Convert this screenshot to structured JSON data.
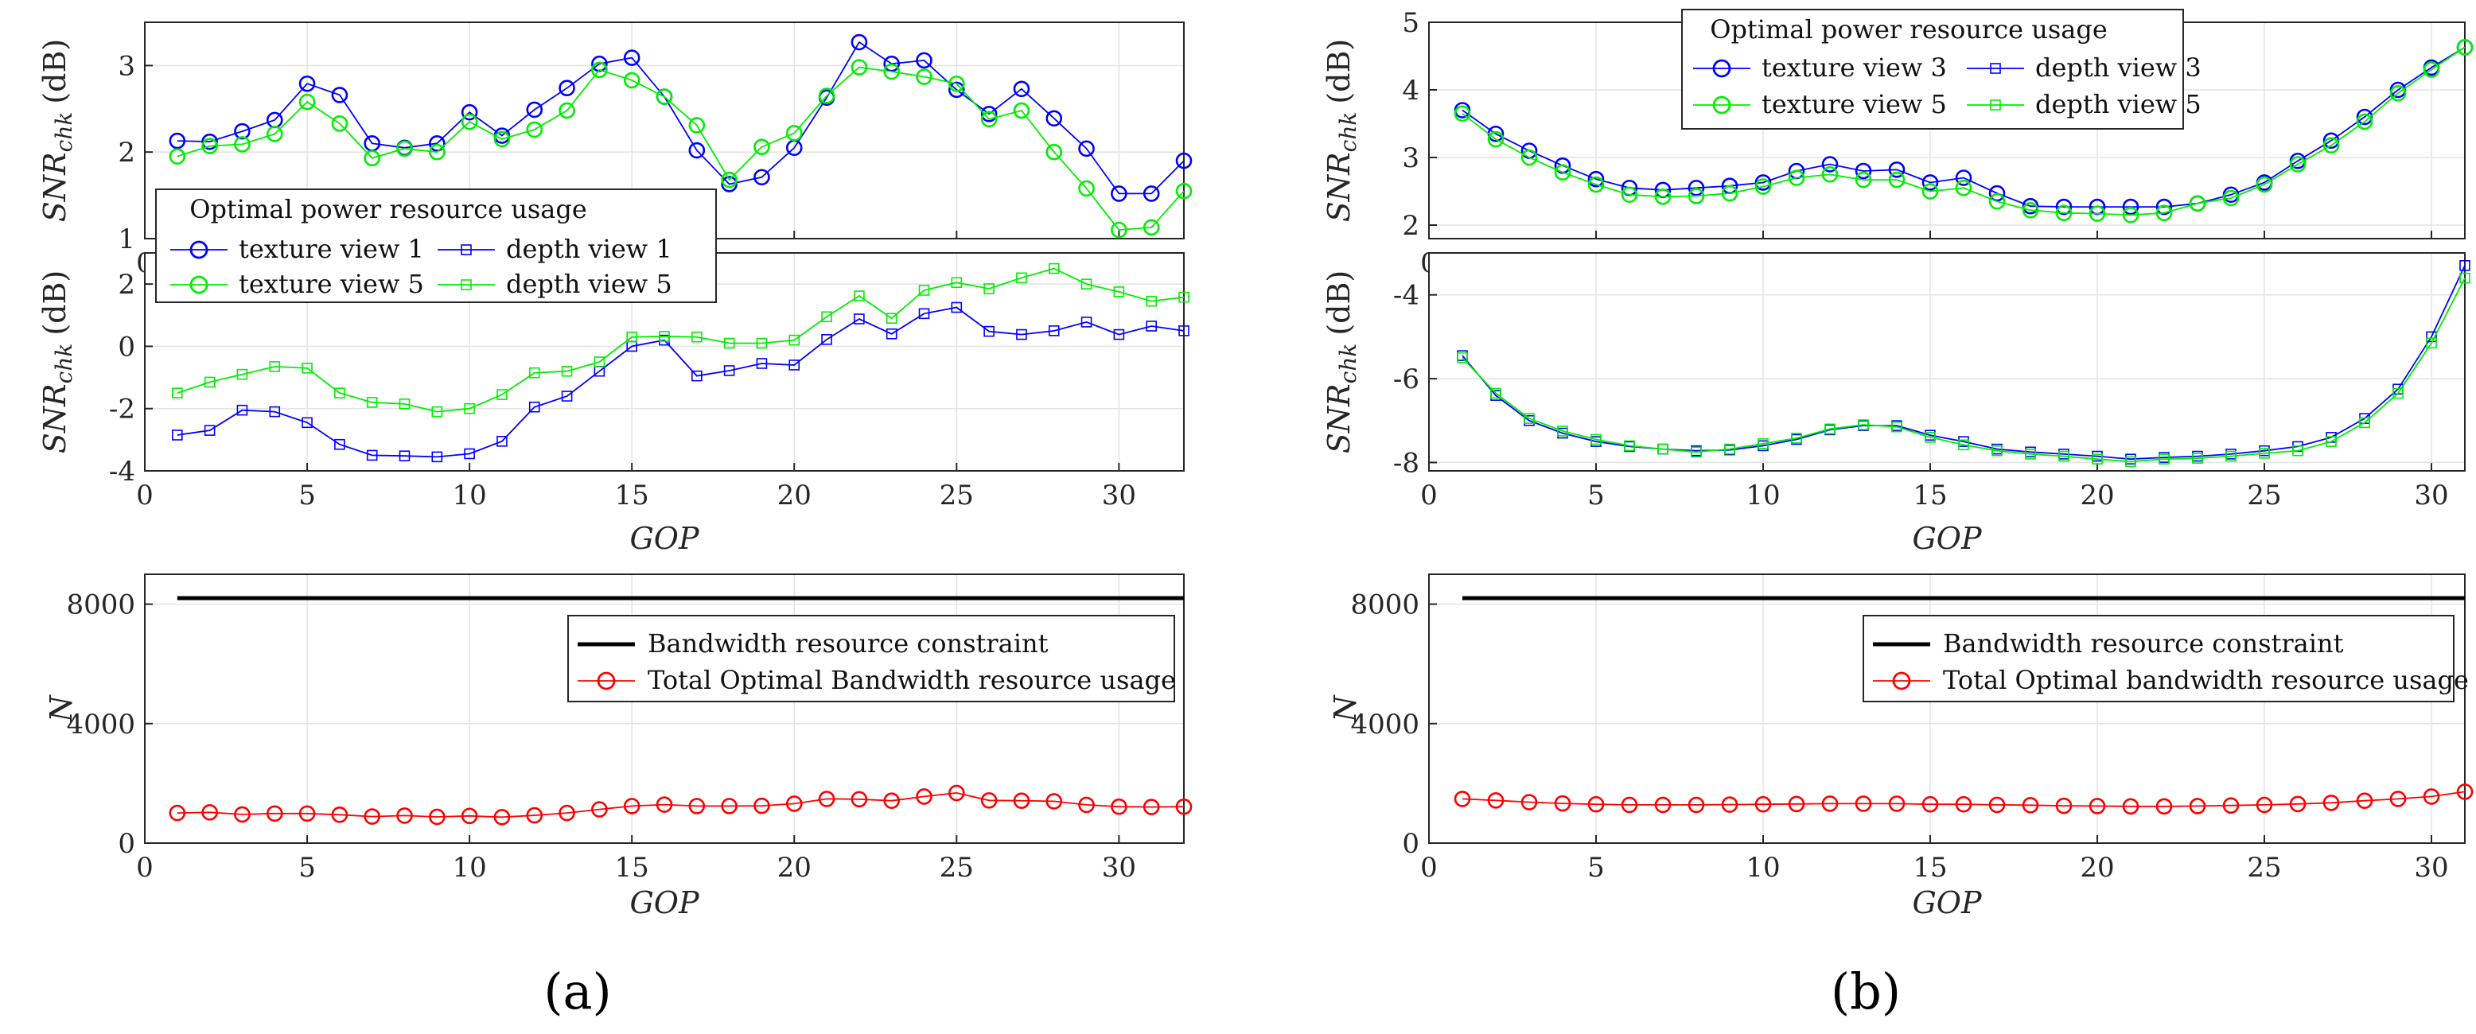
{
  "chart_data": [
    {
      "panel": "a",
      "type": "line",
      "subplot": "snr-texture",
      "xlim": [
        0,
        32
      ],
      "ylim": [
        1,
        3.5
      ],
      "xticks": [
        0,
        5,
        10,
        15,
        20,
        25,
        30
      ],
      "yticks": [
        1,
        2,
        3
      ],
      "xlabel": "",
      "ylabel_main": "SNR",
      "ylabel_sub": "chk",
      "ylabel_unit": "(dB)",
      "legend_title": "Optimal power resource usage",
      "legend_columns": 2,
      "legend_position": "lower-left",
      "series": [
        {
          "name": "texture view 1",
          "color": "#0000ff",
          "marker": "circle",
          "x": [
            1,
            2,
            3,
            4,
            5,
            6,
            7,
            8,
            9,
            10,
            11,
            12,
            13,
            14,
            15,
            16,
            17,
            18,
            19,
            20,
            21,
            22,
            23,
            24,
            25,
            26,
            27,
            28,
            29,
            30,
            31,
            32
          ],
          "values": [
            2.13,
            2.12,
            2.24,
            2.37,
            2.79,
            2.66,
            2.1,
            2.05,
            2.1,
            2.46,
            2.19,
            2.49,
            2.74,
            3.02,
            3.09,
            2.64,
            2.02,
            1.63,
            1.71,
            2.05,
            2.63,
            3.27,
            3.02,
            3.06,
            2.72,
            2.44,
            2.73,
            2.39,
            2.04,
            1.52,
            1.52,
            1.9
          ]
        },
        {
          "name": "texture view 5",
          "color": "#00ee00",
          "marker": "circle",
          "x": [
            1,
            2,
            3,
            4,
            5,
            6,
            7,
            8,
            9,
            10,
            11,
            12,
            13,
            14,
            15,
            16,
            17,
            18,
            19,
            20,
            21,
            22,
            23,
            24,
            25,
            26,
            27,
            28,
            29,
            30,
            31,
            32
          ],
          "values": [
            1.95,
            2.07,
            2.09,
            2.21,
            2.58,
            2.33,
            1.93,
            2.04,
            2.0,
            2.35,
            2.15,
            2.26,
            2.48,
            2.95,
            2.83,
            2.64,
            2.31,
            1.68,
            2.06,
            2.22,
            2.65,
            2.98,
            2.93,
            2.87,
            2.79,
            2.38,
            2.48,
            2.0,
            1.58,
            1.1,
            1.13,
            1.55
          ]
        }
      ]
    },
    {
      "panel": "a",
      "type": "line",
      "subplot": "snr-depth",
      "xlim": [
        0,
        32
      ],
      "ylim": [
        -4,
        3
      ],
      "xticks": [
        0,
        5,
        10,
        15,
        20,
        25,
        30
      ],
      "yticks": [
        -4,
        -2,
        0,
        2
      ],
      "xlabel": "GOP",
      "ylabel_main": "SNR",
      "ylabel_sub": "chk",
      "ylabel_unit": "(dB)",
      "legend_columns": 2,
      "legend_entries_from": "subplot-above",
      "series": [
        {
          "name": "depth view 1",
          "color": "#0000ff",
          "marker": "square",
          "x": [
            1,
            2,
            3,
            4,
            5,
            6,
            7,
            8,
            9,
            10,
            11,
            12,
            13,
            14,
            15,
            16,
            17,
            18,
            19,
            20,
            21,
            22,
            23,
            24,
            25,
            26,
            27,
            28,
            29,
            30,
            31,
            32
          ],
          "values": [
            -2.85,
            -2.7,
            -2.05,
            -2.1,
            -2.45,
            -3.15,
            -3.5,
            -3.52,
            -3.55,
            -3.45,
            -3.05,
            -1.95,
            -1.6,
            -0.8,
            0.0,
            0.2,
            -0.95,
            -0.78,
            -0.55,
            -0.6,
            0.22,
            0.88,
            0.4,
            1.05,
            1.25,
            0.48,
            0.38,
            0.5,
            0.78,
            0.38,
            0.65,
            0.5
          ]
        },
        {
          "name": "depth view 5",
          "color": "#00ee00",
          "marker": "square",
          "x": [
            1,
            2,
            3,
            4,
            5,
            6,
            7,
            8,
            9,
            10,
            11,
            12,
            13,
            14,
            15,
            16,
            17,
            18,
            19,
            20,
            21,
            22,
            23,
            24,
            25,
            26,
            27,
            28,
            29,
            30,
            31,
            32
          ],
          "values": [
            -1.5,
            -1.15,
            -0.9,
            -0.65,
            -0.7,
            -1.5,
            -1.8,
            -1.85,
            -2.1,
            -2.0,
            -1.55,
            -0.85,
            -0.8,
            -0.5,
            0.3,
            0.32,
            0.3,
            0.1,
            0.1,
            0.2,
            0.95,
            1.62,
            0.9,
            1.8,
            2.05,
            1.85,
            2.2,
            2.5,
            2.0,
            1.75,
            1.45,
            1.58
          ]
        }
      ]
    },
    {
      "panel": "a",
      "type": "line",
      "subplot": "bandwidth",
      "xlim": [
        0,
        32
      ],
      "ylim": [
        0,
        9000
      ],
      "xticks": [
        0,
        5,
        10,
        15,
        20,
        25,
        30
      ],
      "yticks": [
        0,
        4000,
        8000
      ],
      "xlabel": "GOP",
      "ylabel": "N",
      "legend_position": "right",
      "series": [
        {
          "name": "Bandwidth resource constraint",
          "color": "#000000",
          "marker": "none",
          "x": [
            1,
            32
          ],
          "values": [
            8200,
            8200
          ]
        },
        {
          "name": "Total Optimal Bandwidth resource usage",
          "color": "#ff0000",
          "marker": "circle",
          "x": [
            1,
            2,
            3,
            4,
            5,
            6,
            7,
            8,
            9,
            10,
            11,
            12,
            13,
            14,
            15,
            16,
            17,
            18,
            19,
            20,
            21,
            22,
            23,
            24,
            25,
            26,
            27,
            28,
            29,
            30,
            31,
            32
          ],
          "values": [
            1010,
            1030,
            960,
            990,
            990,
            950,
            890,
            920,
            880,
            910,
            870,
            930,
            1010,
            1130,
            1240,
            1290,
            1240,
            1240,
            1250,
            1320,
            1480,
            1470,
            1420,
            1560,
            1680,
            1430,
            1420,
            1400,
            1280,
            1220,
            1210,
            1220
          ]
        }
      ]
    },
    {
      "panel": "b",
      "type": "line",
      "subplot": "snr-texture",
      "xlim": [
        0,
        31
      ],
      "ylim": [
        1.8,
        5
      ],
      "xticks": [
        0,
        5,
        10,
        15,
        20,
        25,
        30
      ],
      "yticks": [
        2,
        3,
        4,
        5
      ],
      "xlabel": "",
      "ylabel_main": "SNR",
      "ylabel_sub": "chk",
      "ylabel_unit": "(dB)",
      "legend_title": "Optimal power resource usage",
      "legend_columns": 2,
      "legend_position": "top",
      "series": [
        {
          "name": "texture view 3",
          "color": "#0000ff",
          "marker": "circle",
          "x": [
            1,
            2,
            3,
            4,
            5,
            6,
            7,
            8,
            9,
            10,
            11,
            12,
            13,
            14,
            15,
            16,
            17,
            18,
            19,
            20,
            21,
            22,
            23,
            24,
            25,
            26,
            27,
            28,
            29,
            30,
            31
          ],
          "values": [
            3.7,
            3.35,
            3.1,
            2.88,
            2.68,
            2.55,
            2.52,
            2.55,
            2.58,
            2.63,
            2.8,
            2.9,
            2.8,
            2.82,
            2.63,
            2.7,
            2.47,
            2.28,
            2.27,
            2.27,
            2.27,
            2.27,
            2.32,
            2.45,
            2.63,
            2.95,
            3.25,
            3.6,
            4.0,
            4.33,
            4.63
          ]
        },
        {
          "name": "texture view 5",
          "color": "#00ee00",
          "marker": "circle",
          "x": [
            1,
            2,
            3,
            4,
            5,
            6,
            7,
            8,
            9,
            10,
            11,
            12,
            13,
            14,
            15,
            16,
            17,
            18,
            19,
            20,
            21,
            22,
            23,
            24,
            25,
            26,
            27,
            28,
            29,
            30,
            31
          ],
          "values": [
            3.65,
            3.27,
            3.0,
            2.78,
            2.6,
            2.45,
            2.42,
            2.43,
            2.47,
            2.57,
            2.7,
            2.75,
            2.67,
            2.67,
            2.5,
            2.55,
            2.35,
            2.22,
            2.18,
            2.17,
            2.15,
            2.18,
            2.32,
            2.4,
            2.6,
            2.9,
            3.18,
            3.53,
            3.95,
            4.3,
            4.63
          ]
        },
        {
          "name": "depth view 3",
          "color": "#0000ff",
          "marker": "square",
          "x": [],
          "values": []
        },
        {
          "name": "depth view 5",
          "color": "#00ee00",
          "marker": "square",
          "x": [],
          "values": []
        }
      ]
    },
    {
      "panel": "b",
      "type": "line",
      "subplot": "snr-depth",
      "xlim": [
        0,
        31
      ],
      "ylim": [
        -8.2,
        -3
      ],
      "xticks": [
        0,
        5,
        10,
        15,
        20,
        25,
        30
      ],
      "yticks": [
        -8,
        -6,
        -4
      ],
      "xlabel": "GOP",
      "ylabel_main": "SNR",
      "ylabel_sub": "chk",
      "ylabel_unit": "(dB)",
      "series": [
        {
          "name": "depth view 3",
          "color": "#0000ff",
          "marker": "square",
          "x": [
            1,
            2,
            3,
            4,
            5,
            6,
            7,
            8,
            9,
            10,
            11,
            12,
            13,
            14,
            15,
            16,
            17,
            18,
            19,
            20,
            21,
            22,
            23,
            24,
            25,
            26,
            27,
            28,
            29,
            30,
            31
          ],
          "values": [
            -5.45,
            -6.4,
            -7.0,
            -7.3,
            -7.5,
            -7.62,
            -7.68,
            -7.72,
            -7.7,
            -7.6,
            -7.45,
            -7.22,
            -7.12,
            -7.12,
            -7.35,
            -7.5,
            -7.68,
            -7.75,
            -7.8,
            -7.85,
            -7.92,
            -7.88,
            -7.85,
            -7.8,
            -7.72,
            -7.62,
            -7.4,
            -6.95,
            -6.25,
            -5.0,
            -3.3
          ]
        },
        {
          "name": "depth view 5",
          "color": "#00ee00",
          "marker": "square",
          "x": [
            1,
            2,
            3,
            4,
            5,
            6,
            7,
            8,
            9,
            10,
            11,
            12,
            13,
            14,
            15,
            16,
            17,
            18,
            19,
            20,
            21,
            22,
            23,
            24,
            25,
            26,
            27,
            28,
            29,
            30,
            31
          ],
          "values": [
            -5.5,
            -6.35,
            -6.95,
            -7.25,
            -7.45,
            -7.6,
            -7.68,
            -7.75,
            -7.68,
            -7.55,
            -7.42,
            -7.2,
            -7.1,
            -7.15,
            -7.4,
            -7.58,
            -7.72,
            -7.8,
            -7.85,
            -7.92,
            -7.98,
            -7.92,
            -7.9,
            -7.85,
            -7.78,
            -7.72,
            -7.5,
            -7.05,
            -6.35,
            -5.15,
            -3.6
          ]
        }
      ]
    },
    {
      "panel": "b",
      "type": "line",
      "subplot": "bandwidth",
      "xlim": [
        0,
        31
      ],
      "ylim": [
        0,
        9000
      ],
      "xticks": [
        0,
        5,
        10,
        15,
        20,
        25,
        30
      ],
      "yticks": [
        0,
        4000,
        8000
      ],
      "xlabel": "GOP",
      "ylabel": "N",
      "legend_position": "right",
      "series": [
        {
          "name": "Bandwidth resource constraint",
          "color": "#000000",
          "marker": "none",
          "x": [
            1,
            31
          ],
          "values": [
            8200,
            8200
          ]
        },
        {
          "name": "Total Optimal bandwidth resource usage",
          "color": "#ff0000",
          "marker": "circle",
          "x": [
            1,
            2,
            3,
            4,
            5,
            6,
            7,
            8,
            9,
            10,
            11,
            12,
            13,
            14,
            15,
            16,
            17,
            18,
            19,
            20,
            21,
            22,
            23,
            24,
            25,
            26,
            27,
            28,
            29,
            30,
            31
          ],
          "values": [
            1480,
            1430,
            1370,
            1330,
            1300,
            1280,
            1280,
            1280,
            1290,
            1300,
            1310,
            1320,
            1320,
            1320,
            1300,
            1300,
            1280,
            1270,
            1250,
            1240,
            1230,
            1230,
            1240,
            1260,
            1280,
            1310,
            1350,
            1420,
            1480,
            1560,
            1720
          ]
        }
      ]
    }
  ],
  "panel_labels": [
    "(a)",
    "(b)"
  ]
}
